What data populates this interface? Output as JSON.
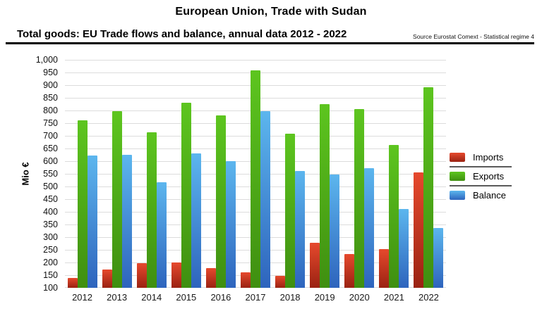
{
  "header": {
    "title": "European Union, Trade with Sudan",
    "subtitle": "Total goods: EU Trade flows and balance, annual data 2012 - 2022",
    "source": "Source Eurostat Comext  - Statistical regime 4"
  },
  "chart_data": {
    "type": "bar",
    "title": "European Union, Trade with Sudan",
    "subtitle": "Total goods: EU Trade flows and balance, annual data 2012 - 2022",
    "ylabel": "Mio €",
    "xlabel": "",
    "ylim": [
      100,
      1000
    ],
    "ytick_step": 50,
    "ytick_labels": [
      "100",
      "150",
      "200",
      "250",
      "300",
      "350",
      "400",
      "450",
      "500",
      "550",
      "600",
      "650",
      "700",
      "750",
      "800",
      "850",
      "900",
      "950",
      "1,000"
    ],
    "grid": true,
    "legend_position": "right",
    "categories": [
      "2012",
      "2013",
      "2014",
      "2015",
      "2016",
      "2017",
      "2018",
      "2019",
      "2020",
      "2021",
      "2022"
    ],
    "series": [
      {
        "name": "Imports",
        "color_top": "#e6492d",
        "color_bottom": "#9a2212",
        "values": [
          140,
          173,
          198,
          200,
          179,
          160,
          148,
          277,
          234,
          254,
          555
        ]
      },
      {
        "name": "Exports",
        "color_top": "#5dc51f",
        "color_bottom": "#3f8f10",
        "values": [
          762,
          797,
          715,
          831,
          780,
          957,
          709,
          824,
          806,
          664,
          891
        ]
      },
      {
        "name": "Balance",
        "color_top": "#5cb6ee",
        "color_bottom": "#2e64bd",
        "values": [
          622,
          624,
          517,
          631,
          601,
          797,
          561,
          547,
          572,
          410,
          336
        ]
      }
    ]
  }
}
